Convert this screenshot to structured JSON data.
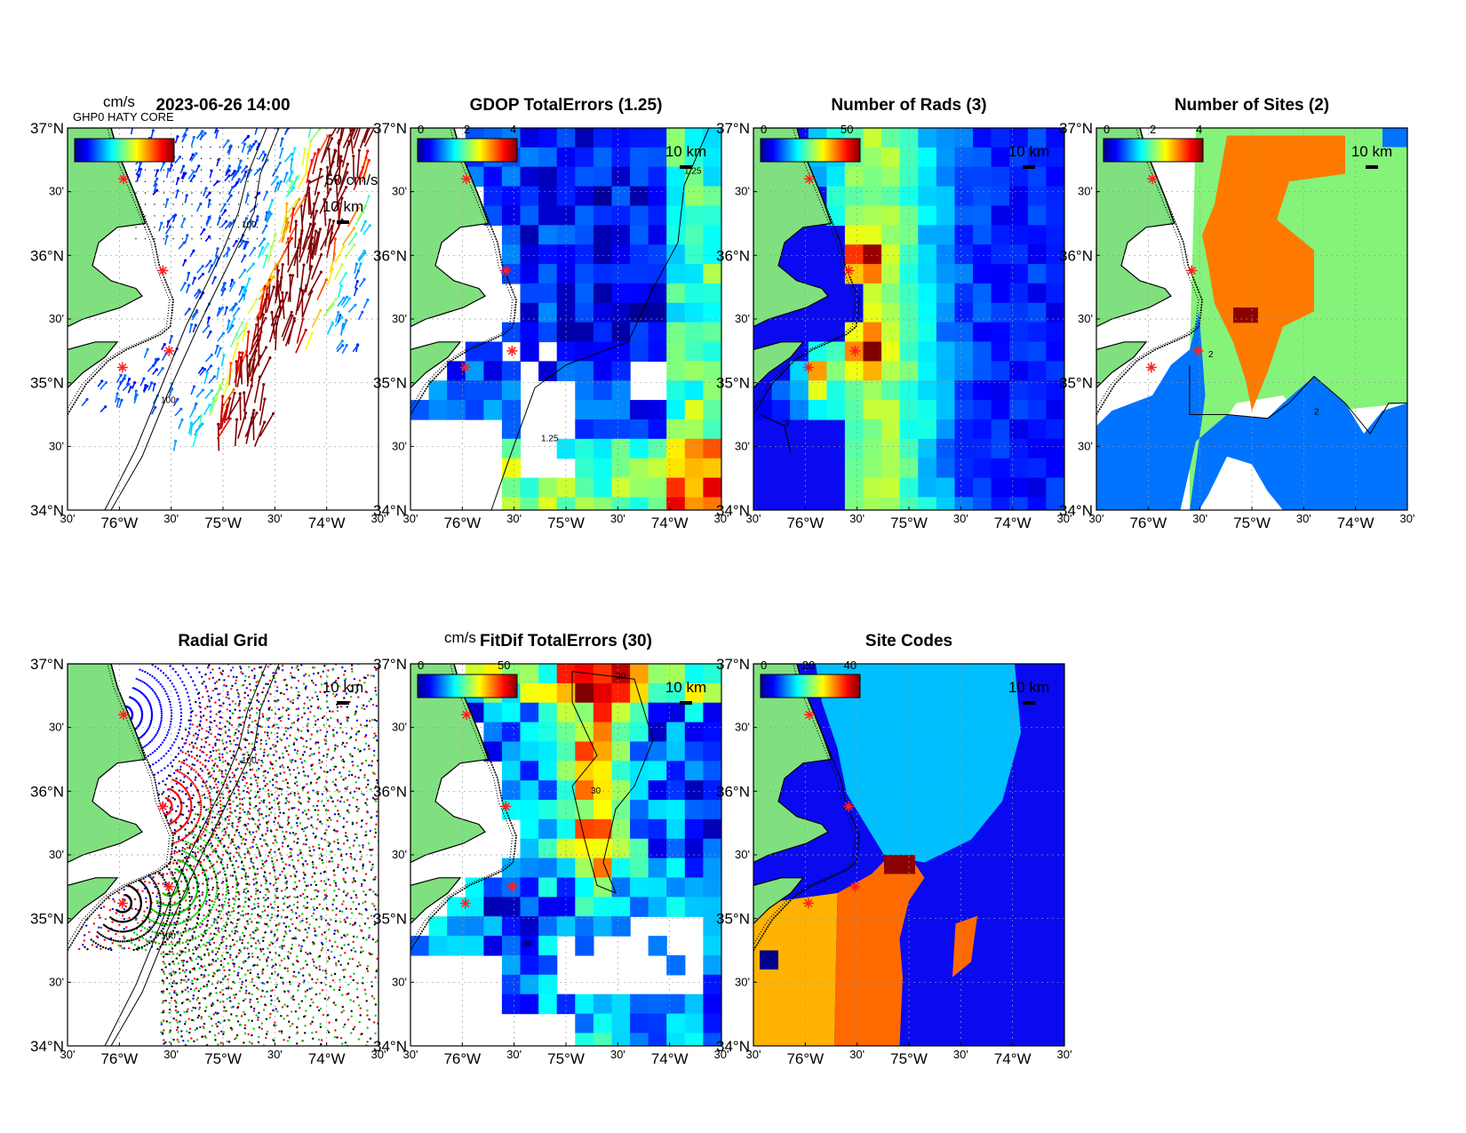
{
  "figure": {
    "panels": [
      {
        "key": "totals",
        "title": "2023-06-26 14:00",
        "cbar_unit": "cm/s",
        "cbar_ticks": [],
        "scale_label": "10 km",
        "vector_label": "50 cm/s",
        "contour_label": "100",
        "stacked_label": "GHP0 HATY CORE"
      },
      {
        "key": "gdop",
        "title": "GDOP TotalErrors (1.25)",
        "cbar_unit": "",
        "cbar_ticks": [
          "0",
          "2",
          "4"
        ],
        "scale_label": "10 km",
        "contour_label": "1.25"
      },
      {
        "key": "nrads",
        "title": "Number of Rads (3)",
        "cbar_unit": "",
        "cbar_ticks": [
          "0",
          "50"
        ],
        "scale_label": "10 km",
        "contour_label": "3"
      },
      {
        "key": "nsites",
        "title": "Number of Sites (2)",
        "cbar_unit": "",
        "cbar_ticks": [
          "0",
          "2",
          "4"
        ],
        "scale_label": "10 km",
        "contour_label": "2"
      },
      {
        "key": "radgrid",
        "title": "Radial Grid",
        "cbar_unit": "",
        "cbar_ticks": [],
        "scale_label": "10 km",
        "contour_label": "100"
      },
      {
        "key": "fitdif",
        "title": "FitDif TotalErrors (30)",
        "cbar_unit": "cm/s",
        "cbar_ticks": [
          "0",
          "50"
        ],
        "scale_label": "10 km",
        "contour_label": "30"
      },
      {
        "key": "sitecodes",
        "title": "Site Codes",
        "cbar_unit": "",
        "cbar_ticks": [
          "0",
          "20",
          "40"
        ],
        "scale_label": "10 km",
        "contour_label": ""
      }
    ],
    "y_ticks": [
      {
        "lat": 37.0,
        "label": "37°N",
        "major": true
      },
      {
        "lat": 36.5,
        "label": "30'",
        "major": false
      },
      {
        "lat": 36.0,
        "label": "36°N",
        "major": true
      },
      {
        "lat": 35.5,
        "label": "30'",
        "major": false
      },
      {
        "lat": 35.0,
        "label": "35°N",
        "major": true
      },
      {
        "lat": 34.5,
        "label": "30'",
        "major": false
      },
      {
        "lat": 34.0,
        "label": "34°N",
        "major": true
      }
    ],
    "x_ticks": [
      {
        "lon": -76.5,
        "label": "30'",
        "major": false
      },
      {
        "lon": -76.0,
        "label": "76°W",
        "major": true
      },
      {
        "lon": -75.5,
        "label": "30'",
        "major": false
      },
      {
        "lon": -75.0,
        "label": "75°W",
        "major": true
      },
      {
        "lon": -74.5,
        "label": "30'",
        "major": false
      },
      {
        "lon": -74.0,
        "label": "74°W",
        "major": true
      },
      {
        "lon": -73.5,
        "label": "30'",
        "major": false
      }
    ],
    "extent": {
      "lon": [
        -76.5,
        -73.5
      ],
      "lat": [
        34.0,
        37.0
      ]
    },
    "radar_sites": [
      {
        "lon": -75.96,
        "lat": 36.6
      },
      {
        "lon": -75.58,
        "lat": 35.88
      },
      {
        "lon": -75.52,
        "lat": 35.25
      },
      {
        "lon": -75.97,
        "lat": 35.12
      }
    ],
    "colors": {
      "land": "#80e080",
      "site_marker": "#ff2020",
      "jet_blue": "#0000c8",
      "jet_red": "#8b0000",
      "radial_site_1": "#0000ff",
      "radial_site_2": "#ff0000",
      "radial_site_3": "#00d000",
      "radial_site_4": "#000000",
      "site_codes": [
        "#00008b",
        "#0000ff",
        "#00bfff",
        "#ffb300",
        "#ff6a00",
        "#ff2a00",
        "#8b0000"
      ],
      "nsites_codes": [
        "#0073ff",
        "#85f27a",
        "#ff7a00",
        "#8b0000"
      ]
    }
  }
}
